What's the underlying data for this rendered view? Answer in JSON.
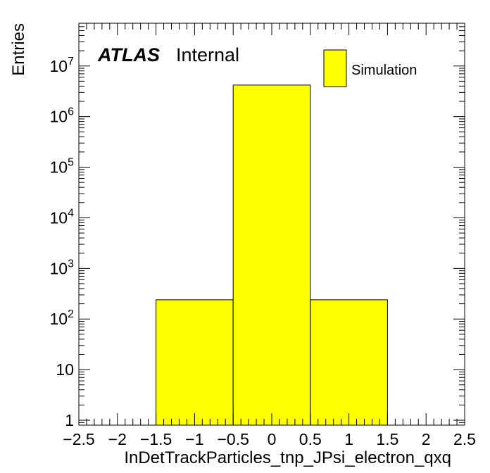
{
  "chart_data": {
    "type": "bar",
    "style": "histogram",
    "xlabel": "InDetTrackParticles_tnp_JPsi_electron_qxq",
    "ylabel": "Entries",
    "xlim": [
      -2.5,
      2.5
    ],
    "ylim": [
      0.8,
      70000000
    ],
    "yscale": "log",
    "x_ticks": [
      -2.5,
      -2,
      -1.5,
      -1,
      -0.5,
      0,
      0.5,
      1,
      1.5,
      2,
      2.5
    ],
    "x_tick_labels": [
      "−2.5",
      "−2",
      "−1.5",
      "−1",
      "−0.5",
      "0",
      "0.5",
      "1",
      "1.5",
      "2",
      "2.5"
    ],
    "y_ticks": [
      {
        "value": 1,
        "base": "1",
        "exp": ""
      },
      {
        "value": 10,
        "base": "10",
        "exp": ""
      },
      {
        "value": 100,
        "base": "10",
        "exp": "2"
      },
      {
        "value": 1000,
        "base": "10",
        "exp": "3"
      },
      {
        "value": 10000,
        "base": "10",
        "exp": "4"
      },
      {
        "value": 100000,
        "base": "10",
        "exp": "5"
      },
      {
        "value": 1000000,
        "base": "10",
        "exp": "6"
      },
      {
        "value": 10000000,
        "base": "10",
        "exp": "7"
      }
    ],
    "bins": [
      {
        "low": -1.5,
        "high": -0.5,
        "value": 240
      },
      {
        "low": -0.5,
        "high": 0.5,
        "value": 4200000
      },
      {
        "low": 0.5,
        "high": 1.5,
        "value": 240
      }
    ],
    "series": [
      {
        "name": "Simulation",
        "color": "#ffff00"
      }
    ],
    "legend_position": "top-right",
    "labels": {
      "experiment": "ATLAS",
      "status": "Internal"
    },
    "grid": false
  }
}
